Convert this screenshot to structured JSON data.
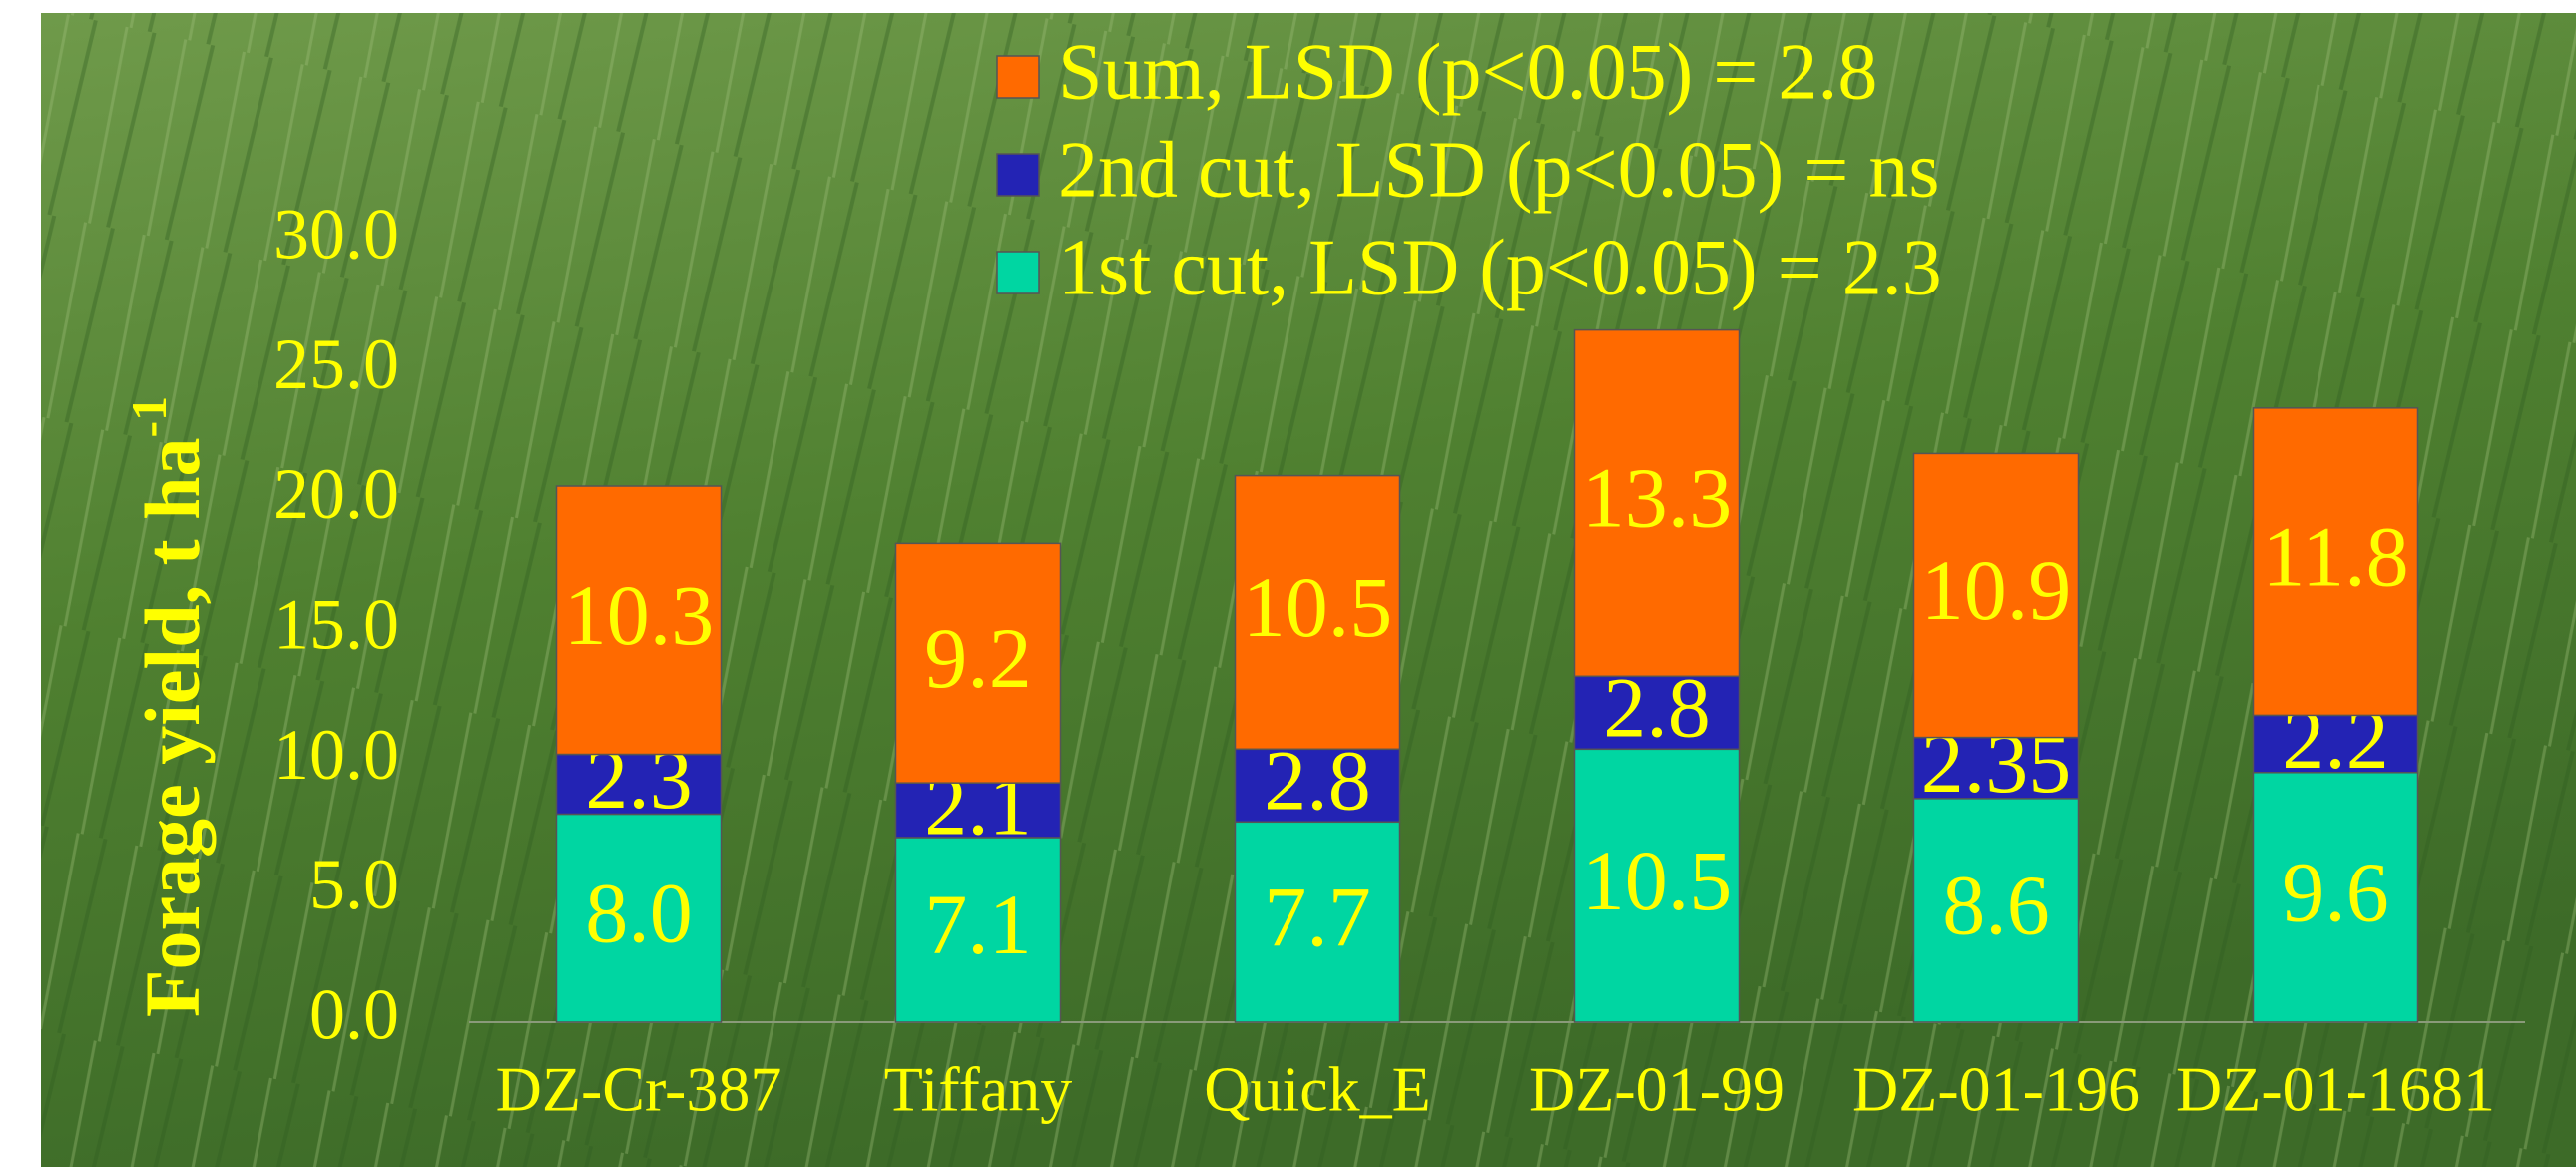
{
  "chart_data": {
    "type": "stacked_bar",
    "ylabel": "Forage yield, t ha",
    "ylabel_sup": "-1",
    "categories": [
      "DZ-Cr-387",
      "Tiffany",
      "Quick_E",
      "DZ-01-99",
      "DZ-01-196",
      "DZ-01-1681"
    ],
    "series": [
      {
        "name": "1st cut, LSD (p<0.05) = 2.3",
        "color": "#00d6a2",
        "values": [
          8.0,
          7.1,
          7.7,
          10.5,
          8.6,
          9.6
        ],
        "value_labels": [
          "8.0",
          "7.1",
          "7.7",
          "10.5",
          "8.6",
          "9.6"
        ]
      },
      {
        "name": "2nd cut, LSD (p<0.05) = ns",
        "color": "#2323b4",
        "values": [
          2.3,
          2.1,
          2.8,
          2.8,
          2.35,
          2.2
        ],
        "value_labels": [
          "2.3",
          "2.1",
          "2.8",
          "2.8",
          "2.35",
          "2.2"
        ]
      },
      {
        "name": "Sum, LSD (p<0.05) = 2.8",
        "color": "#ff6a00",
        "values": [
          10.3,
          9.2,
          10.5,
          13.3,
          10.9,
          11.8
        ],
        "value_labels": [
          "10.3",
          "9.2",
          "10.5",
          "13.3",
          "10.9",
          "11.8"
        ]
      }
    ],
    "ylim": [
      0,
      30
    ],
    "yticks": [
      {
        "value": 0,
        "label": "0.0"
      },
      {
        "value": 5,
        "label": "5.0"
      },
      {
        "value": 10,
        "label": "10.0"
      },
      {
        "value": 15,
        "label": "15.0"
      },
      {
        "value": 20,
        "label": "20.0"
      },
      {
        "value": 25,
        "label": "25.0"
      },
      {
        "value": 30,
        "label": "30.0"
      }
    ],
    "grid": false,
    "legend": "top"
  }
}
